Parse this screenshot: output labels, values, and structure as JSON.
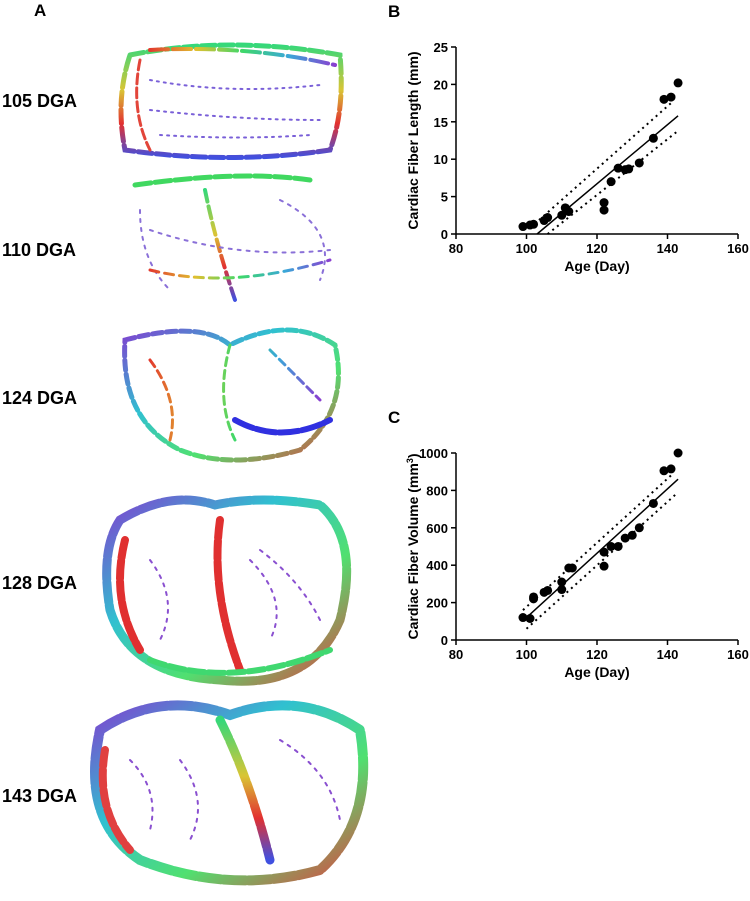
{
  "panel_a": {
    "label": "A",
    "rows": [
      "105 DGA",
      "110 DGA",
      "124 DGA",
      "128 DGA",
      "143 DGA"
    ]
  },
  "chart_data": [
    {
      "type": "scatter",
      "panel_label": "B",
      "xlabel": "Age (Day)",
      "ylabel": [
        "Cardiac Fiber Length (mm)"
      ],
      "x": [
        99,
        101,
        102,
        105,
        106,
        110,
        111,
        112,
        122,
        122,
        124,
        126,
        128,
        129,
        132,
        136,
        139,
        141,
        143
      ],
      "y": [
        1.0,
        1.2,
        1.3,
        1.8,
        2.2,
        2.5,
        3.5,
        3.0,
        4.2,
        3.2,
        7.0,
        8.8,
        8.6,
        8.7,
        9.5,
        12.8,
        18.0,
        18.3,
        20.2
      ],
      "color": "#000000",
      "lines": [
        {
          "x": [
            103,
            143
          ],
          "y": [
            0,
            15.8
          ],
          "style": "solid"
        },
        {
          "x": [
            101,
            141
          ],
          "y": [
            0.8,
            17.5
          ],
          "style": "dotted"
        },
        {
          "x": [
            106,
            143
          ],
          "y": [
            0,
            13.8
          ],
          "style": "dotted"
        }
      ],
      "xlim": [
        80,
        160
      ],
      "xticks": [
        80,
        100,
        120,
        140,
        160
      ],
      "ylim": [
        0,
        25
      ],
      "yticks": [
        0,
        5,
        10,
        15,
        20,
        25
      ]
    },
    {
      "type": "scatter",
      "panel_label": "C",
      "xlabel": "Age (Day)",
      "ylabel": [
        "Cardiac Fiber Volume (mm",
        "3",
        ")"
      ],
      "x": [
        99,
        101,
        102,
        102,
        105,
        106,
        110,
        110,
        112,
        113,
        122,
        122,
        124,
        126,
        128,
        130,
        132,
        136,
        139,
        141,
        143
      ],
      "y": [
        120,
        115,
        220,
        230,
        255,
        265,
        270,
        310,
        385,
        385,
        395,
        470,
        500,
        500,
        545,
        560,
        600,
        730,
        905,
        915,
        1000
      ],
      "color": "#000000",
      "lines": [
        {
          "x": [
            100,
            143
          ],
          "y": [
            120,
            860
          ],
          "style": "solid"
        },
        {
          "x": [
            99,
            141
          ],
          "y": [
            160,
            880
          ],
          "style": "dotted"
        },
        {
          "x": [
            100,
            143
          ],
          "y": [
            60,
            790
          ],
          "style": "dotted"
        }
      ],
      "xlim": [
        80,
        160
      ],
      "xticks": [
        80,
        100,
        120,
        140,
        160
      ],
      "ylim": [
        0,
        1000
      ],
      "yticks": [
        0,
        200,
        400,
        600,
        800,
        1000
      ]
    }
  ]
}
